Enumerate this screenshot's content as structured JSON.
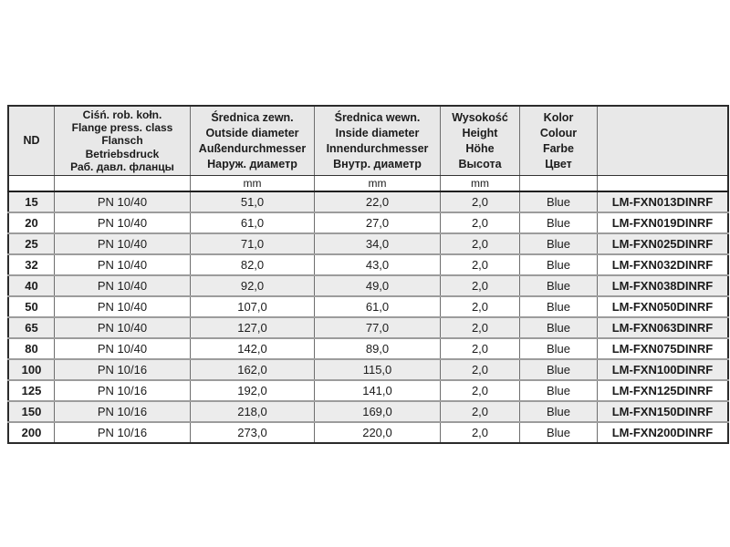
{
  "colors": {
    "page_bg": "#ffffff",
    "header_bg": "#e8e8e8",
    "alt_row_bg": "#ececec",
    "row_bg": "#ffffff",
    "outer_border": "#2b2b2b",
    "grid_line": "#6e6e6e",
    "row_separator": "#9c9c9c",
    "heavy_separator": "#1f1f1f",
    "text": "#1c1c1c"
  },
  "table": {
    "columns": [
      {
        "id": "nd",
        "header_lines": [
          "ND"
        ],
        "unit": ""
      },
      {
        "id": "pressure",
        "header_lines": [
          "Ciśń. rob. kołn.",
          "Flange press. class",
          "Flansch",
          "Betriebsdruck",
          "Раб. давл. фланцы"
        ],
        "unit": ""
      },
      {
        "id": "outside",
        "header_lines": [
          "Średnica zewn.",
          "Outside diameter",
          "Außendurchmesser",
          "Наруж. диаметр"
        ],
        "unit": "mm"
      },
      {
        "id": "inside",
        "header_lines": [
          "Średnica wewn.",
          "Inside diameter",
          "Innendurchmesser",
          "Внутр. диаметр"
        ],
        "unit": "mm"
      },
      {
        "id": "height",
        "header_lines": [
          "Wysokość",
          "Height",
          "Höhe",
          "Высота"
        ],
        "unit": "mm"
      },
      {
        "id": "colour",
        "header_lines": [
          "Kolor",
          "Colour",
          "Farbe",
          "Цвет"
        ],
        "unit": ""
      },
      {
        "id": "part",
        "header_lines": [],
        "unit": ""
      }
    ],
    "rows": [
      {
        "nd": "15",
        "pressure": "PN 10/40",
        "outside": "51,0",
        "inside": "22,0",
        "height": "2,0",
        "colour": "Blue",
        "part": "LM-FXN013DINRF"
      },
      {
        "nd": "20",
        "pressure": "PN 10/40",
        "outside": "61,0",
        "inside": "27,0",
        "height": "2,0",
        "colour": "Blue",
        "part": "LM-FXN019DINRF"
      },
      {
        "nd": "25",
        "pressure": "PN 10/40",
        "outside": "71,0",
        "inside": "34,0",
        "height": "2,0",
        "colour": "Blue",
        "part": "LM-FXN025DINRF"
      },
      {
        "nd": "32",
        "pressure": "PN 10/40",
        "outside": "82,0",
        "inside": "43,0",
        "height": "2,0",
        "colour": "Blue",
        "part": "LM-FXN032DINRF"
      },
      {
        "nd": "40",
        "pressure": "PN 10/40",
        "outside": "92,0",
        "inside": "49,0",
        "height": "2,0",
        "colour": "Blue",
        "part": "LM-FXN038DINRF"
      },
      {
        "nd": "50",
        "pressure": "PN 10/40",
        "outside": "107,0",
        "inside": "61,0",
        "height": "2,0",
        "colour": "Blue",
        "part": "LM-FXN050DINRF"
      },
      {
        "nd": "65",
        "pressure": "PN 10/40",
        "outside": "127,0",
        "inside": "77,0",
        "height": "2,0",
        "colour": "Blue",
        "part": "LM-FXN063DINRF"
      },
      {
        "nd": "80",
        "pressure": "PN 10/40",
        "outside": "142,0",
        "inside": "89,0",
        "height": "2,0",
        "colour": "Blue",
        "part": "LM-FXN075DINRF"
      },
      {
        "nd": "100",
        "pressure": "PN 10/16",
        "outside": "162,0",
        "inside": "115,0",
        "height": "2,0",
        "colour": "Blue",
        "part": "LM-FXN100DINRF"
      },
      {
        "nd": "125",
        "pressure": "PN 10/16",
        "outside": "192,0",
        "inside": "141,0",
        "height": "2,0",
        "colour": "Blue",
        "part": "LM-FXN125DINRF"
      },
      {
        "nd": "150",
        "pressure": "PN 10/16",
        "outside": "218,0",
        "inside": "169,0",
        "height": "2,0",
        "colour": "Blue",
        "part": "LM-FXN150DINRF"
      },
      {
        "nd": "200",
        "pressure": "PN 10/16",
        "outside": "273,0",
        "inside": "220,0",
        "height": "2,0",
        "colour": "Blue",
        "part": "LM-FXN200DINRF"
      }
    ]
  }
}
